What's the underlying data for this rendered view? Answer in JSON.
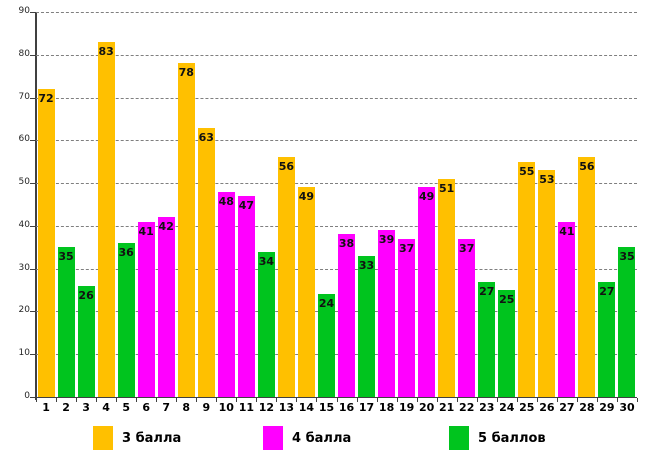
{
  "chart_data": {
    "type": "bar",
    "title": "",
    "xlabel": "",
    "ylabel": "",
    "ylim": [
      0,
      90
    ],
    "ytick_step": 10,
    "grid": "horizontal-dashed",
    "legend_position": "bottom",
    "categories": [
      "1",
      "2",
      "3",
      "4",
      "5",
      "6",
      "7",
      "8",
      "9",
      "10",
      "11",
      "12",
      "13",
      "14",
      "15",
      "16",
      "17",
      "18",
      "19",
      "20",
      "21",
      "22",
      "23",
      "24",
      "25",
      "26",
      "27",
      "28",
      "29",
      "30"
    ],
    "values": [
      72,
      35,
      26,
      83,
      36,
      41,
      42,
      78,
      63,
      48,
      47,
      34,
      56,
      49,
      24,
      38,
      33,
      39,
      37,
      49,
      51,
      37,
      27,
      25,
      55,
      53,
      41,
      56,
      27,
      35
    ],
    "groups": [
      "3",
      "5",
      "5",
      "3",
      "5",
      "4",
      "4",
      "3",
      "3",
      "4",
      "4",
      "5",
      "3",
      "3",
      "5",
      "4",
      "5",
      "4",
      "4",
      "4",
      "3",
      "4",
      "5",
      "5",
      "3",
      "3",
      "4",
      "3",
      "5",
      "5"
    ],
    "legend": [
      {
        "key": "3",
        "label": "3 балла",
        "color": "#FFC000"
      },
      {
        "key": "4",
        "label": "4 балла",
        "color": "#FF00FF"
      },
      {
        "key": "5",
        "label": "5 баллов",
        "color": "#00C41E"
      }
    ],
    "colors": {
      "gridline": "#7f7f7f",
      "axis": "#404040",
      "bar_value_label": "#111111",
      "x_label": "#000000",
      "y_label": "#262626",
      "background": "#ffffff"
    }
  }
}
